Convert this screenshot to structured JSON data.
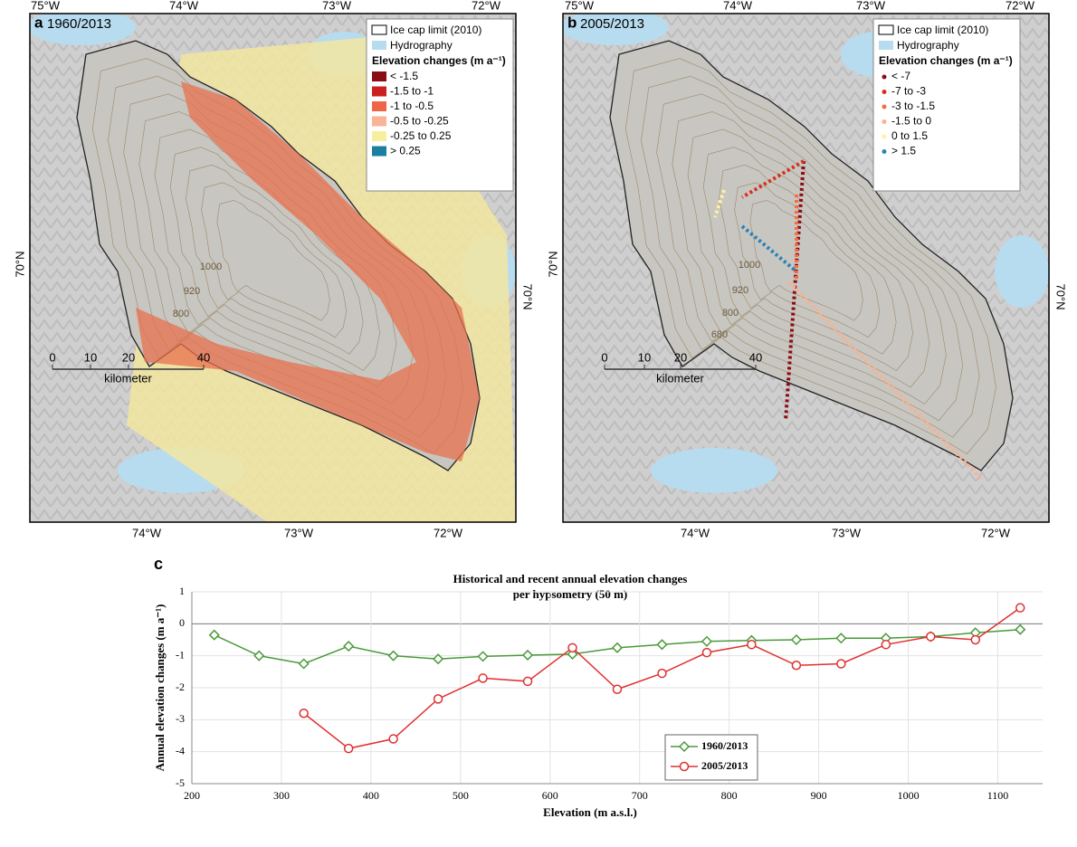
{
  "panels": [
    {
      "letter": "a",
      "label": "1960/2013",
      "top_ticks": [
        "75°W",
        "74°W",
        "73°W",
        "72°W"
      ],
      "bottom_ticks": [
        "74°W",
        "73°W",
        "72°W"
      ],
      "left_tick": "70°N",
      "right_tick": "70°N",
      "legend": {
        "limit": "Ice cap limit (2010)",
        "hydro": "Hydrography",
        "heading": "Elevation changes (m a⁻¹)",
        "marker": "square",
        "items": [
          {
            "label": "< -1.5",
            "color": "#8b0d14"
          },
          {
            "label": "-1.5 to -1",
            "color": "#cc1f1f"
          },
          {
            "label": "-1 to -0.5",
            "color": "#ef6548"
          },
          {
            "label": "-0.5 to -0.25",
            "color": "#f9b497"
          },
          {
            "label": "-0.25 to 0.25",
            "color": "#f7ef9d"
          },
          {
            "label": "> 0.25",
            "color": "#1a7fa0"
          }
        ]
      },
      "contours": [
        "1000",
        "920",
        "800"
      ],
      "scale": {
        "ticks": [
          "0",
          "10",
          "20",
          "40"
        ],
        "unit": "kilometer"
      }
    },
    {
      "letter": "b",
      "label": "2005/2013",
      "top_ticks": [
        "75°W",
        "74°W",
        "73°W",
        "72°W"
      ],
      "bottom_ticks": [
        "74°W",
        "73°W",
        "72°W"
      ],
      "left_tick": "70°N",
      "right_tick": "70°N",
      "legend": {
        "limit": "Ice cap limit (2010)",
        "hydro": "Hydrography",
        "heading": "Elevation changes (m a⁻¹)",
        "marker": "dot",
        "items": [
          {
            "label": "< -7",
            "color": "#8b0d14"
          },
          {
            "label": "-7 to -3",
            "color": "#d7301f"
          },
          {
            "label": "-3 to -1.5",
            "color": "#f46d43"
          },
          {
            "label": "-1.5 to 0",
            "color": "#fbb08f"
          },
          {
            "label": "0 to 1.5",
            "color": "#fff3a0"
          },
          {
            "label": "> 1.5",
            "color": "#2b83ba"
          }
        ]
      },
      "contours": [
        "1000",
        "920",
        "800",
        "680"
      ],
      "scale": {
        "ticks": [
          "0",
          "10",
          "20",
          "40"
        ],
        "unit": "kilometer"
      }
    }
  ],
  "chart_data": {
    "type": "line",
    "letter": "c",
    "title": "Historical and recent annual elevation changes",
    "subtitle": "per hypsometry (50 m)",
    "x_label": "Elevation (m a.s.l.)",
    "y_label": "Annual elevation changes (m a⁻¹)",
    "x": [
      225,
      275,
      325,
      375,
      425,
      475,
      525,
      575,
      625,
      675,
      725,
      775,
      825,
      875,
      925,
      975,
      1025,
      1075,
      1125
    ],
    "series": [
      {
        "name": "1960/2013",
        "color": "#4a9a3a",
        "marker": "diamond",
        "values": [
          -0.35,
          -1.0,
          -1.25,
          -0.7,
          -1.0,
          -1.1,
          -1.02,
          -0.98,
          -0.95,
          -0.75,
          -0.65,
          -0.55,
          -0.52,
          -0.5,
          -0.45,
          -0.45,
          -0.4,
          -0.28,
          -0.18
        ]
      },
      {
        "name": "2005/2013",
        "color": "#e03030",
        "marker": "circle",
        "values": [
          null,
          null,
          -2.8,
          -3.9,
          -3.6,
          -2.35,
          -1.7,
          -1.8,
          -0.75,
          -2.05,
          -1.55,
          -0.9,
          -0.65,
          -1.3,
          -1.25,
          -0.65,
          -0.4,
          -0.5,
          0.5
        ]
      }
    ],
    "xlim": [
      200,
      1150
    ],
    "ylim": [
      -5,
      1
    ],
    "xticks": [
      200,
      300,
      400,
      500,
      600,
      700,
      800,
      900,
      1000,
      1100
    ],
    "yticks": [
      -5,
      -4,
      -3,
      -2,
      -1,
      0,
      1
    ],
    "grid": true
  }
}
